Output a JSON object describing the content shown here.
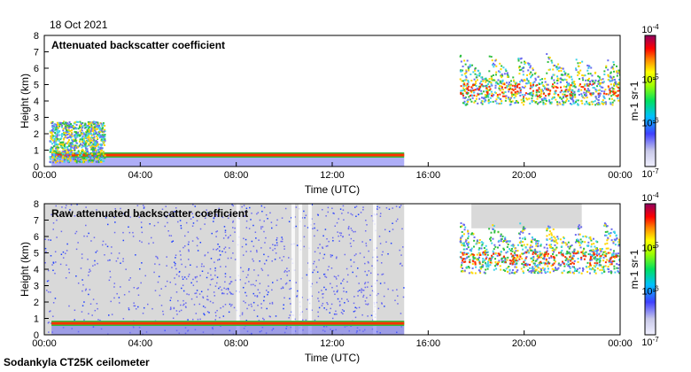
{
  "date_label": "18 Oct 2021",
  "footer_label": "Sodankyla CT25K ceilometer",
  "colors": {
    "low": "#6b6bf0",
    "mid_low": "#3fd3e8",
    "mid": "#2fbf3f",
    "mid_high": "#ffd700",
    "high": "#ff3000",
    "max": "#900060",
    "noise": "#c8c8e8",
    "grey": "#d9d9d9"
  },
  "chart_data": [
    {
      "type": "heatmap",
      "title": "Attenuated backscatter coefficient",
      "xlabel": "Time (UTC)",
      "ylabel": "Height (km)",
      "x_ticks": [
        "00:00",
        "04:00",
        "08:00",
        "12:00",
        "16:00",
        "20:00",
        "00:00"
      ],
      "xlim": [
        0,
        24
      ],
      "y_ticks": [
        "0",
        "1",
        "2",
        "3",
        "4",
        "5",
        "6",
        "7",
        "8"
      ],
      "ylim": [
        0,
        8
      ],
      "colorbar": {
        "scale": "log",
        "ticks": [
          "10-7",
          "10-6",
          "10-5",
          "10-4"
        ],
        "unit": "m-1 sr-1",
        "range": [
          1e-07,
          0.0001
        ]
      },
      "features": [
        {
          "name": "boundary layer",
          "t_start": 0.3,
          "t_end": 15.0,
          "height_km": 0.7,
          "level": "high"
        },
        {
          "name": "low cloud",
          "t_start": 0.2,
          "t_end": 2.5,
          "h_min_km": 0.3,
          "h_max_km": 2.8,
          "level": "mid"
        },
        {
          "name": "upper cloud",
          "t_start": 17.3,
          "t_end": 24.0,
          "h_min_km": 3.8,
          "h_max_km": 7.0,
          "level": "mid_high"
        }
      ]
    },
    {
      "type": "heatmap",
      "title": "Raw attenuated backscatter coefficient",
      "xlabel": "Time (UTC)",
      "ylabel": "Height (km)",
      "x_ticks": [
        "00:00",
        "04:00",
        "08:00",
        "12:00",
        "16:00",
        "20:00",
        "00:00"
      ],
      "xlim": [
        0,
        24
      ],
      "y_ticks": [
        "0",
        "1",
        "2",
        "3",
        "4",
        "5",
        "6",
        "7",
        "8"
      ],
      "ylim": [
        0,
        8
      ],
      "colorbar": {
        "scale": "log",
        "ticks": [
          "10-7",
          "10-6",
          "10-5",
          "10-4"
        ],
        "unit": "m-1 sr-1",
        "range": [
          1e-07,
          0.0001
        ]
      },
      "features": [
        {
          "name": "noise",
          "t_start": 0.0,
          "t_end": 15.0,
          "h_min_km": 0.0,
          "h_max_km": 8.0,
          "level": "noise"
        },
        {
          "name": "boundary layer",
          "t_start": 0.3,
          "t_end": 15.0,
          "height_km": 0.7,
          "level": "high"
        },
        {
          "name": "upper cloud",
          "t_start": 17.3,
          "t_end": 24.0,
          "h_min_km": 3.8,
          "h_max_km": 7.0,
          "level": "mid_high"
        }
      ]
    }
  ]
}
